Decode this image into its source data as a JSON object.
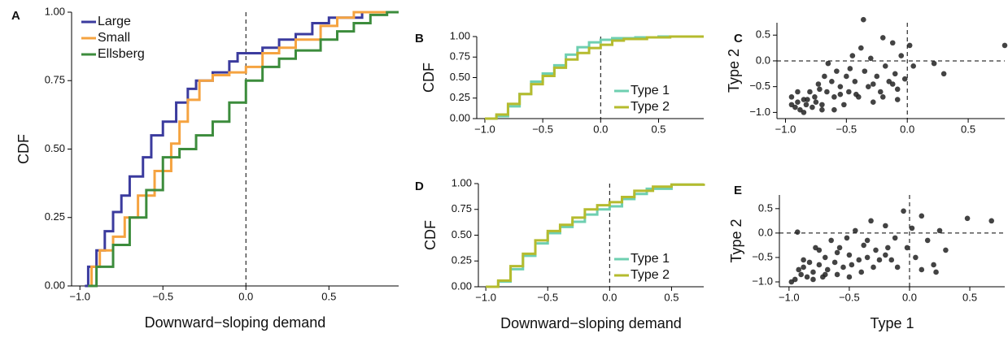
{
  "chart_data": [
    {
      "type": "step",
      "panel_label": "A",
      "xlabel": "Downward−sloping demand",
      "ylabel": "CDF",
      "xlim": [
        -1.05,
        0.92
      ],
      "ylim": [
        0,
        1
      ],
      "xticks": [
        {
          "value": -1,
          "label": "−1.0"
        },
        {
          "value": -0.5,
          "label": "−0.5"
        },
        {
          "value": 0,
          "label": "0.0"
        },
        0.5
      ],
      "yticks": [
        {
          "value": 0,
          "label": "0.00"
        },
        0.25,
        {
          "value": 0.5,
          "label": "0.50"
        },
        0.75,
        {
          "value": 1,
          "label": "1.00"
        }
      ],
      "vline": 0,
      "legend": "upper left",
      "series": [
        {
          "name": "Large",
          "color": "#3b3b9e",
          "x": [
            -0.97,
            -0.95,
            -0.9,
            -0.85,
            -0.8,
            -0.75,
            -0.7,
            -0.62,
            -0.57,
            -0.5,
            -0.42,
            -0.35,
            -0.3,
            -0.2,
            -0.1,
            -0.05,
            0.05,
            0.1,
            0.2,
            0.3,
            0.4,
            0.5,
            0.7,
            0.92
          ],
          "values": [
            0,
            0.07,
            0.13,
            0.2,
            0.27,
            0.33,
            0.4,
            0.47,
            0.55,
            0.6,
            0.67,
            0.72,
            0.75,
            0.78,
            0.82,
            0.85,
            0.85,
            0.87,
            0.9,
            0.92,
            0.96,
            0.98,
            1,
            1
          ]
        },
        {
          "name": "Small",
          "color": "#f5a340",
          "x": [
            -0.95,
            -0.93,
            -0.88,
            -0.8,
            -0.73,
            -0.65,
            -0.55,
            -0.45,
            -0.4,
            -0.35,
            -0.28,
            -0.2,
            -0.1,
            0,
            0.1,
            0.2,
            0.3,
            0.45,
            0.55,
            0.65,
            0.92
          ],
          "values": [
            0,
            0.07,
            0.13,
            0.18,
            0.25,
            0.33,
            0.42,
            0.52,
            0.6,
            0.68,
            0.75,
            0.77,
            0.78,
            0.8,
            0.85,
            0.87,
            0.9,
            0.95,
            0.98,
            1,
            1
          ]
        },
        {
          "name": "Ellsberg",
          "color": "#3c8c3c",
          "x": [
            -0.95,
            -0.9,
            -0.8,
            -0.7,
            -0.6,
            -0.5,
            -0.4,
            -0.3,
            -0.2,
            -0.1,
            0,
            0.1,
            0.2,
            0.3,
            0.45,
            0.55,
            0.65,
            0.75,
            0.85,
            0.92
          ],
          "values": [
            0,
            0.07,
            0.15,
            0.25,
            0.35,
            0.47,
            0.5,
            0.55,
            0.6,
            0.67,
            0.75,
            0.8,
            0.83,
            0.86,
            0.9,
            0.93,
            0.96,
            0.99,
            1,
            1
          ]
        }
      ]
    },
    {
      "type": "step",
      "panel_label": "B",
      "ylabel": "CDF",
      "xlim": [
        -1.07,
        0.89
      ],
      "ylim": [
        0,
        1
      ],
      "xticks": [
        {
          "value": -1,
          "label": "−1.0"
        },
        {
          "value": -0.5,
          "label": "−0.5"
        },
        {
          "value": 0,
          "label": "0.0"
        },
        0.5
      ],
      "yticks": [
        {
          "value": 0,
          "label": "0.00"
        },
        0.25,
        {
          "value": 0.5,
          "label": "0.50"
        },
        0.75,
        {
          "value": 1,
          "label": "1.00"
        }
      ],
      "vline": 0,
      "legend": "lower right",
      "series": [
        {
          "name": "Type 1",
          "color": "#6ecfb0",
          "x": [
            -0.95,
            -0.9,
            -0.8,
            -0.7,
            -0.6,
            -0.5,
            -0.4,
            -0.3,
            -0.2,
            -0.1,
            0,
            0.1,
            0.3,
            0.5,
            0.89
          ],
          "values": [
            0,
            0.03,
            0.15,
            0.3,
            0.45,
            0.55,
            0.65,
            0.78,
            0.87,
            0.93,
            0.96,
            0.98,
            0.99,
            1,
            1
          ]
        },
        {
          "name": "Type 2",
          "color": "#b5bb2e",
          "x": [
            -1,
            -0.9,
            -0.8,
            -0.7,
            -0.6,
            -0.5,
            -0.4,
            -0.3,
            -0.2,
            -0.1,
            0,
            0.1,
            0.2,
            0.4,
            0.6,
            0.89
          ],
          "values": [
            0,
            0.05,
            0.18,
            0.3,
            0.42,
            0.52,
            0.62,
            0.72,
            0.8,
            0.86,
            0.9,
            0.95,
            0.97,
            0.99,
            1,
            1
          ]
        }
      ]
    },
    {
      "type": "scatter",
      "panel_label": "C",
      "ylabel": "Type 2",
      "xlim": [
        -1.07,
        0.8
      ],
      "ylim": [
        -1.12,
        0.74
      ],
      "xticks": [
        {
          "value": -1,
          "label": "−1.0"
        },
        {
          "value": -0.5,
          "label": "−0.5"
        },
        {
          "value": 0,
          "label": "0.0"
        },
        0.5
      ],
      "yticks": [
        {
          "value": -1,
          "label": "−1.0"
        },
        {
          "value": -0.5,
          "label": "−0.5"
        },
        {
          "value": 0,
          "label": "0.0"
        },
        0.5
      ],
      "vline": 0,
      "hline": 0,
      "color": "#222222",
      "x": [
        -0.95,
        -0.92,
        -0.9,
        -0.88,
        -0.85,
        -0.83,
        -0.8,
        -0.78,
        -0.76,
        -0.75,
        -0.73,
        -0.7,
        -0.68,
        -0.66,
        -0.65,
        -0.62,
        -0.6,
        -0.58,
        -0.55,
        -0.52,
        -0.5,
        -0.48,
        -0.45,
        -0.43,
        -0.4,
        -0.38,
        -0.36,
        -0.35,
        -0.32,
        -0.3,
        -0.28,
        -0.25,
        -0.22,
        -0.2,
        -0.18,
        -0.15,
        -0.12,
        -0.1,
        -0.08,
        -0.05,
        -0.02,
        0.02,
        0.05,
        0.22,
        0.3,
        0.8,
        -0.9,
        -0.82,
        -0.72,
        -0.6,
        -0.47,
        -0.42,
        -0.2,
        -0.12,
        -0.7,
        -0.55,
        -0.28,
        -0.08,
        -0.95,
        -0.85
      ],
      "values": [
        -0.7,
        -0.9,
        -0.8,
        -0.95,
        -0.75,
        -0.85,
        -0.6,
        -0.9,
        -0.7,
        -0.8,
        -0.45,
        -0.95,
        -0.3,
        -0.6,
        -0.05,
        -0.4,
        -0.7,
        -0.2,
        -0.5,
        -0.85,
        -0.3,
        -0.6,
        0.1,
        -0.4,
        -0.7,
        0.25,
        0.8,
        -0.2,
        -0.5,
        0.05,
        -0.8,
        -0.3,
        -0.6,
        0.45,
        -0.1,
        -0.4,
        0.35,
        -0.25,
        -0.55,
        0.1,
        -0.35,
        0.3,
        -0.1,
        -0.05,
        -0.25,
        0.3,
        -0.6,
        -0.75,
        -0.55,
        -0.95,
        -0.15,
        -0.65,
        -0.7,
        -0.45,
        -0.85,
        -0.65,
        -0.45,
        -0.75,
        -0.85,
        -1
      ]
    },
    {
      "type": "step",
      "panel_label": "D",
      "xlabel": "Downward−sloping demand",
      "ylabel": "CDF",
      "xlim": [
        -1.06,
        0.76
      ],
      "ylim": [
        0,
        1
      ],
      "xticks": [
        {
          "value": -1,
          "label": "−1.0"
        },
        {
          "value": -0.5,
          "label": "−0.5"
        },
        {
          "value": 0,
          "label": "0.0"
        },
        0.5
      ],
      "yticks": [
        {
          "value": 0,
          "label": "0.00"
        },
        0.25,
        {
          "value": 0.5,
          "label": "0.50"
        },
        0.75,
        {
          "value": 1,
          "label": "1.00"
        }
      ],
      "vline": 0,
      "legend": "lower right",
      "series": [
        {
          "name": "Type 1",
          "color": "#6ecfb0",
          "x": [
            -1,
            -0.9,
            -0.8,
            -0.7,
            -0.6,
            -0.5,
            -0.4,
            -0.3,
            -0.2,
            -0.1,
            0,
            0.1,
            0.2,
            0.3,
            0.5,
            0.76
          ],
          "values": [
            0,
            0.05,
            0.17,
            0.3,
            0.42,
            0.52,
            0.58,
            0.63,
            0.7,
            0.75,
            0.78,
            0.85,
            0.9,
            0.95,
            0.99,
            1
          ]
        },
        {
          "name": "Type 2",
          "color": "#b5bb2e",
          "x": [
            -1,
            -0.9,
            -0.8,
            -0.7,
            -0.6,
            -0.5,
            -0.4,
            -0.3,
            -0.2,
            -0.1,
            0,
            0.1,
            0.2,
            0.35,
            0.5,
            0.76
          ],
          "values": [
            0,
            0.06,
            0.2,
            0.32,
            0.45,
            0.54,
            0.6,
            0.67,
            0.75,
            0.79,
            0.82,
            0.87,
            0.93,
            0.97,
            0.99,
            1
          ]
        }
      ]
    },
    {
      "type": "scatter",
      "panel_label": "E",
      "xlabel": "Type 1",
      "ylabel": "Type 2",
      "xlim": [
        -1.08,
        0.79
      ],
      "ylim": [
        -1.1,
        0.78
      ],
      "xticks": [
        {
          "value": -1,
          "label": "−1.0"
        },
        {
          "value": -0.5,
          "label": "−0.5"
        },
        {
          "value": 0,
          "label": "0.0"
        },
        0.5
      ],
      "yticks": [
        {
          "value": -1,
          "label": "−1.0"
        },
        {
          "value": -0.5,
          "label": "−0.5"
        },
        {
          "value": 0,
          "label": "0.0"
        },
        0.5
      ],
      "vline": 0,
      "hline": 0,
      "color": "#222222",
      "x": [
        -0.98,
        -0.95,
        -0.93,
        -0.9,
        -0.88,
        -0.85,
        -0.83,
        -0.8,
        -0.78,
        -0.75,
        -0.72,
        -0.7,
        -0.68,
        -0.65,
        -0.62,
        -0.6,
        -0.58,
        -0.55,
        -0.52,
        -0.5,
        -0.48,
        -0.45,
        -0.42,
        -0.4,
        -0.38,
        -0.35,
        -0.32,
        -0.3,
        -0.28,
        -0.25,
        -0.2,
        -0.18,
        -0.15,
        -0.12,
        -0.1,
        -0.05,
        -0.02,
        0.02,
        0.05,
        0.1,
        0.15,
        0.2,
        0.25,
        0.3,
        0.48,
        0.68,
        -0.92,
        -0.8,
        -0.7,
        -0.6,
        -0.5,
        -0.35,
        -0.2,
        0.1,
        0.22,
        -0.88,
        -0.75
      ],
      "values": [
        -1,
        -0.95,
        0.02,
        -0.85,
        -0.7,
        -0.9,
        -0.6,
        -0.8,
        -0.3,
        -0.65,
        -0.9,
        -0.5,
        -0.75,
        -0.15,
        -0.6,
        -0.85,
        -0.3,
        -0.7,
        -0.1,
        -0.45,
        -0.65,
        0.05,
        -0.55,
        -0.8,
        -0.25,
        -0.5,
        0.25,
        -0.7,
        -0.35,
        -0.55,
        0.15,
        -0.3,
        -0.55,
        -0.1,
        -0.7,
        0.45,
        -0.3,
        0.1,
        -0.5,
        0.35,
        -0.15,
        -0.65,
        0.05,
        -0.35,
        0.3,
        0.25,
        -0.75,
        -0.95,
        -0.85,
        -0.4,
        -0.9,
        -0.15,
        -0.45,
        -0.75,
        -0.8,
        -0.55,
        -0.35
      ]
    }
  ]
}
